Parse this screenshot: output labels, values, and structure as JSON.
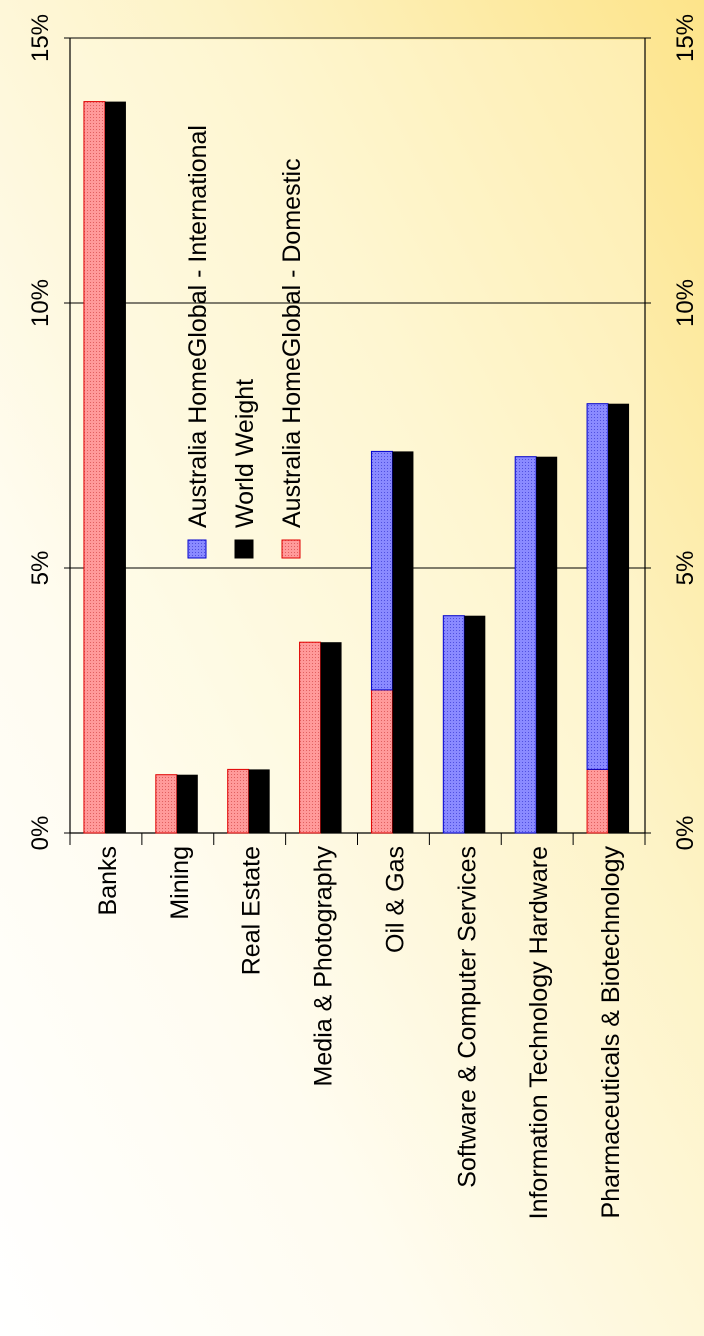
{
  "chart_data": {
    "type": "bar",
    "orientation": "rotated",
    "stacked_series": [
      "Australia HomeGlobal - Domestic",
      "Australia HomeGlobal - International"
    ],
    "categories": [
      "Banks",
      "Mining",
      "Real Estate",
      "Media & Photography",
      "Oil & Gas",
      "Software & Computer Services",
      "Information Technology Hardware",
      "Pharmaceuticals & Biotechnology"
    ],
    "series": [
      {
        "name": "Australia HomeGlobal - International",
        "values": [
          0,
          0,
          0,
          0,
          4.5,
          4.1,
          7.1,
          6.9
        ]
      },
      {
        "name": "World Weight",
        "values": [
          13.8,
          1.1,
          1.2,
          3.6,
          7.2,
          4.1,
          7.1,
          8.1
        ]
      },
      {
        "name": "Australia HomeGlobal - Domestic",
        "values": [
          13.8,
          1.1,
          1.2,
          3.6,
          2.7,
          0,
          0,
          1.2
        ]
      }
    ],
    "y_ticks": [
      "0%",
      "5%",
      "10%",
      "15%"
    ],
    "ylim": [
      0,
      15
    ],
    "grid": true,
    "legend": "inside, middle"
  },
  "colors": {
    "international_fill": "#7f7fff",
    "international_stroke": "#0000cc",
    "world_fill": "#000000",
    "domestic_fill": "#ff8c8c",
    "domestic_stroke": "#e00000"
  }
}
